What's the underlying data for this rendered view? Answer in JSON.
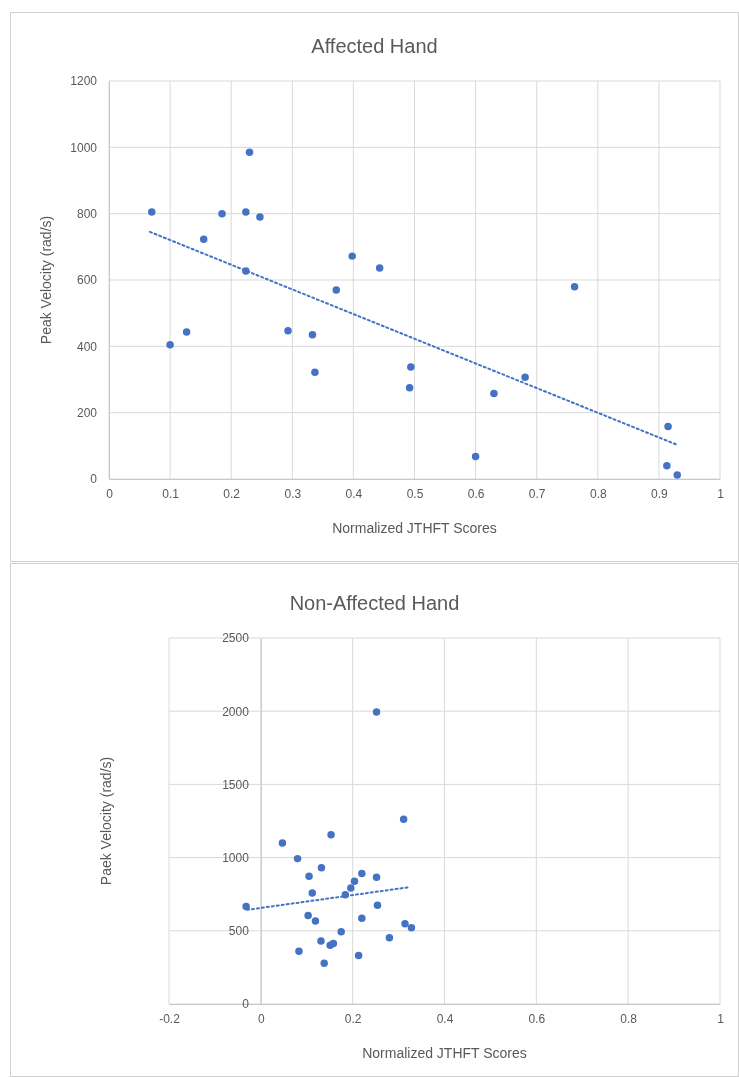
{
  "chart_data": [
    {
      "type": "scatter",
      "title": "Affected Hand",
      "xlabel": "Normalized JTHFT Scores",
      "ylabel": "Peak Velocity (rad/s)",
      "xlim": [
        0,
        1
      ],
      "xticks": [
        0,
        0.1,
        0.2,
        0.3,
        0.4,
        0.5,
        0.6,
        0.7,
        0.8,
        0.9,
        1
      ],
      "ylim": [
        0,
        1200
      ],
      "yticks": [
        0,
        200,
        400,
        600,
        800,
        1000,
        1200
      ],
      "grid": true,
      "series": [
        {
          "color": "#4472c4",
          "marker": "circle",
          "x": [
            0.07,
            0.1,
            0.127,
            0.155,
            0.185,
            0.224,
            0.23,
            0.247,
            0.224,
            0.293,
            0.333,
            0.337,
            0.372,
            0.398,
            0.443,
            0.492,
            0.494,
            0.6,
            0.63,
            0.681,
            0.762,
            0.915,
            0.913,
            0.93
          ],
          "values": [
            805,
            405,
            443,
            723,
            800,
            805,
            985,
            790,
            627,
            447,
            435,
            322,
            570,
            672,
            636,
            275,
            338,
            68,
            258,
            307,
            580,
            158,
            40,
            12
          ]
        },
        {
          "type": "line",
          "color": "#4472c4",
          "line_style": "dotted",
          "x": [
            0.067,
            0.93
          ],
          "values": [
            745,
            103
          ]
        }
      ]
    },
    {
      "type": "scatter",
      "title": "Non-Affected Hand",
      "xlabel": "Normalized JTHFT Scores",
      "ylabel": "Paek Velocity (rad/s)",
      "xlim": [
        -0.2,
        1
      ],
      "xticks": [
        -0.2,
        0,
        0.2,
        0.4,
        0.6,
        0.8,
        1
      ],
      "ylim": [
        0,
        2500
      ],
      "yticks": [
        0,
        500,
        1000,
        1500,
        2000,
        2500
      ],
      "grid": true,
      "series": [
        {
          "color": "#4472c4",
          "marker": "circle",
          "x": [
            -0.032,
            0.047,
            0.08,
            0.105,
            0.112,
            0.103,
            0.119,
            0.083,
            0.132,
            0.153,
            0.131,
            0.151,
            0.158,
            0.138,
            0.175,
            0.184,
            0.196,
            0.204,
            0.22,
            0.22,
            0.213,
            0.252,
            0.252,
            0.254,
            0.28,
            0.311,
            0.314,
            0.328
          ],
          "values": [
            666,
            1099,
            993,
            873,
            758,
            605,
            567,
            361,
            930,
            1156,
            431,
            402,
            413,
            278,
            494,
            747,
            792,
            839,
            892,
            585,
            332,
            1995,
            865,
            675,
            452,
            1262,
            548,
            521
          ]
        },
        {
          "type": "line",
          "color": "#4472c4",
          "line_style": "dotted",
          "x": [
            -0.03,
            0.321
          ],
          "values": [
            643,
            797
          ]
        }
      ]
    }
  ]
}
